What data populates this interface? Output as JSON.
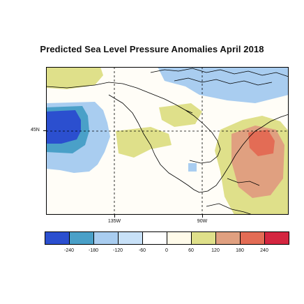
{
  "title": "Predicted Sea Level Pressure Anomalies April 2018",
  "map": {
    "lat_labels": [
      "45N"
    ],
    "lon_labels": [
      "135W",
      "90W"
    ],
    "gridlines": "dashed"
  },
  "colorbar": {
    "colors": [
      "#2b4fcf",
      "#4aa0c8",
      "#a9cdf0",
      "#c8e1f8",
      "#ffffff",
      "#fffbea",
      "#dfe08a",
      "#e0a080",
      "#e36c55",
      "#d42640"
    ],
    "labels": [
      "-240",
      "-180",
      "-120",
      "-60",
      "0",
      "60",
      "120",
      "180",
      "240"
    ]
  },
  "colors": {
    "strong_negative": "#2b4fcf",
    "negative": "#4aa0c8",
    "weak_negative": "#a9cdf0",
    "weak_positive": "#dfe08a",
    "positive": "#e0a080",
    "strong_positive": "#e36c55"
  }
}
